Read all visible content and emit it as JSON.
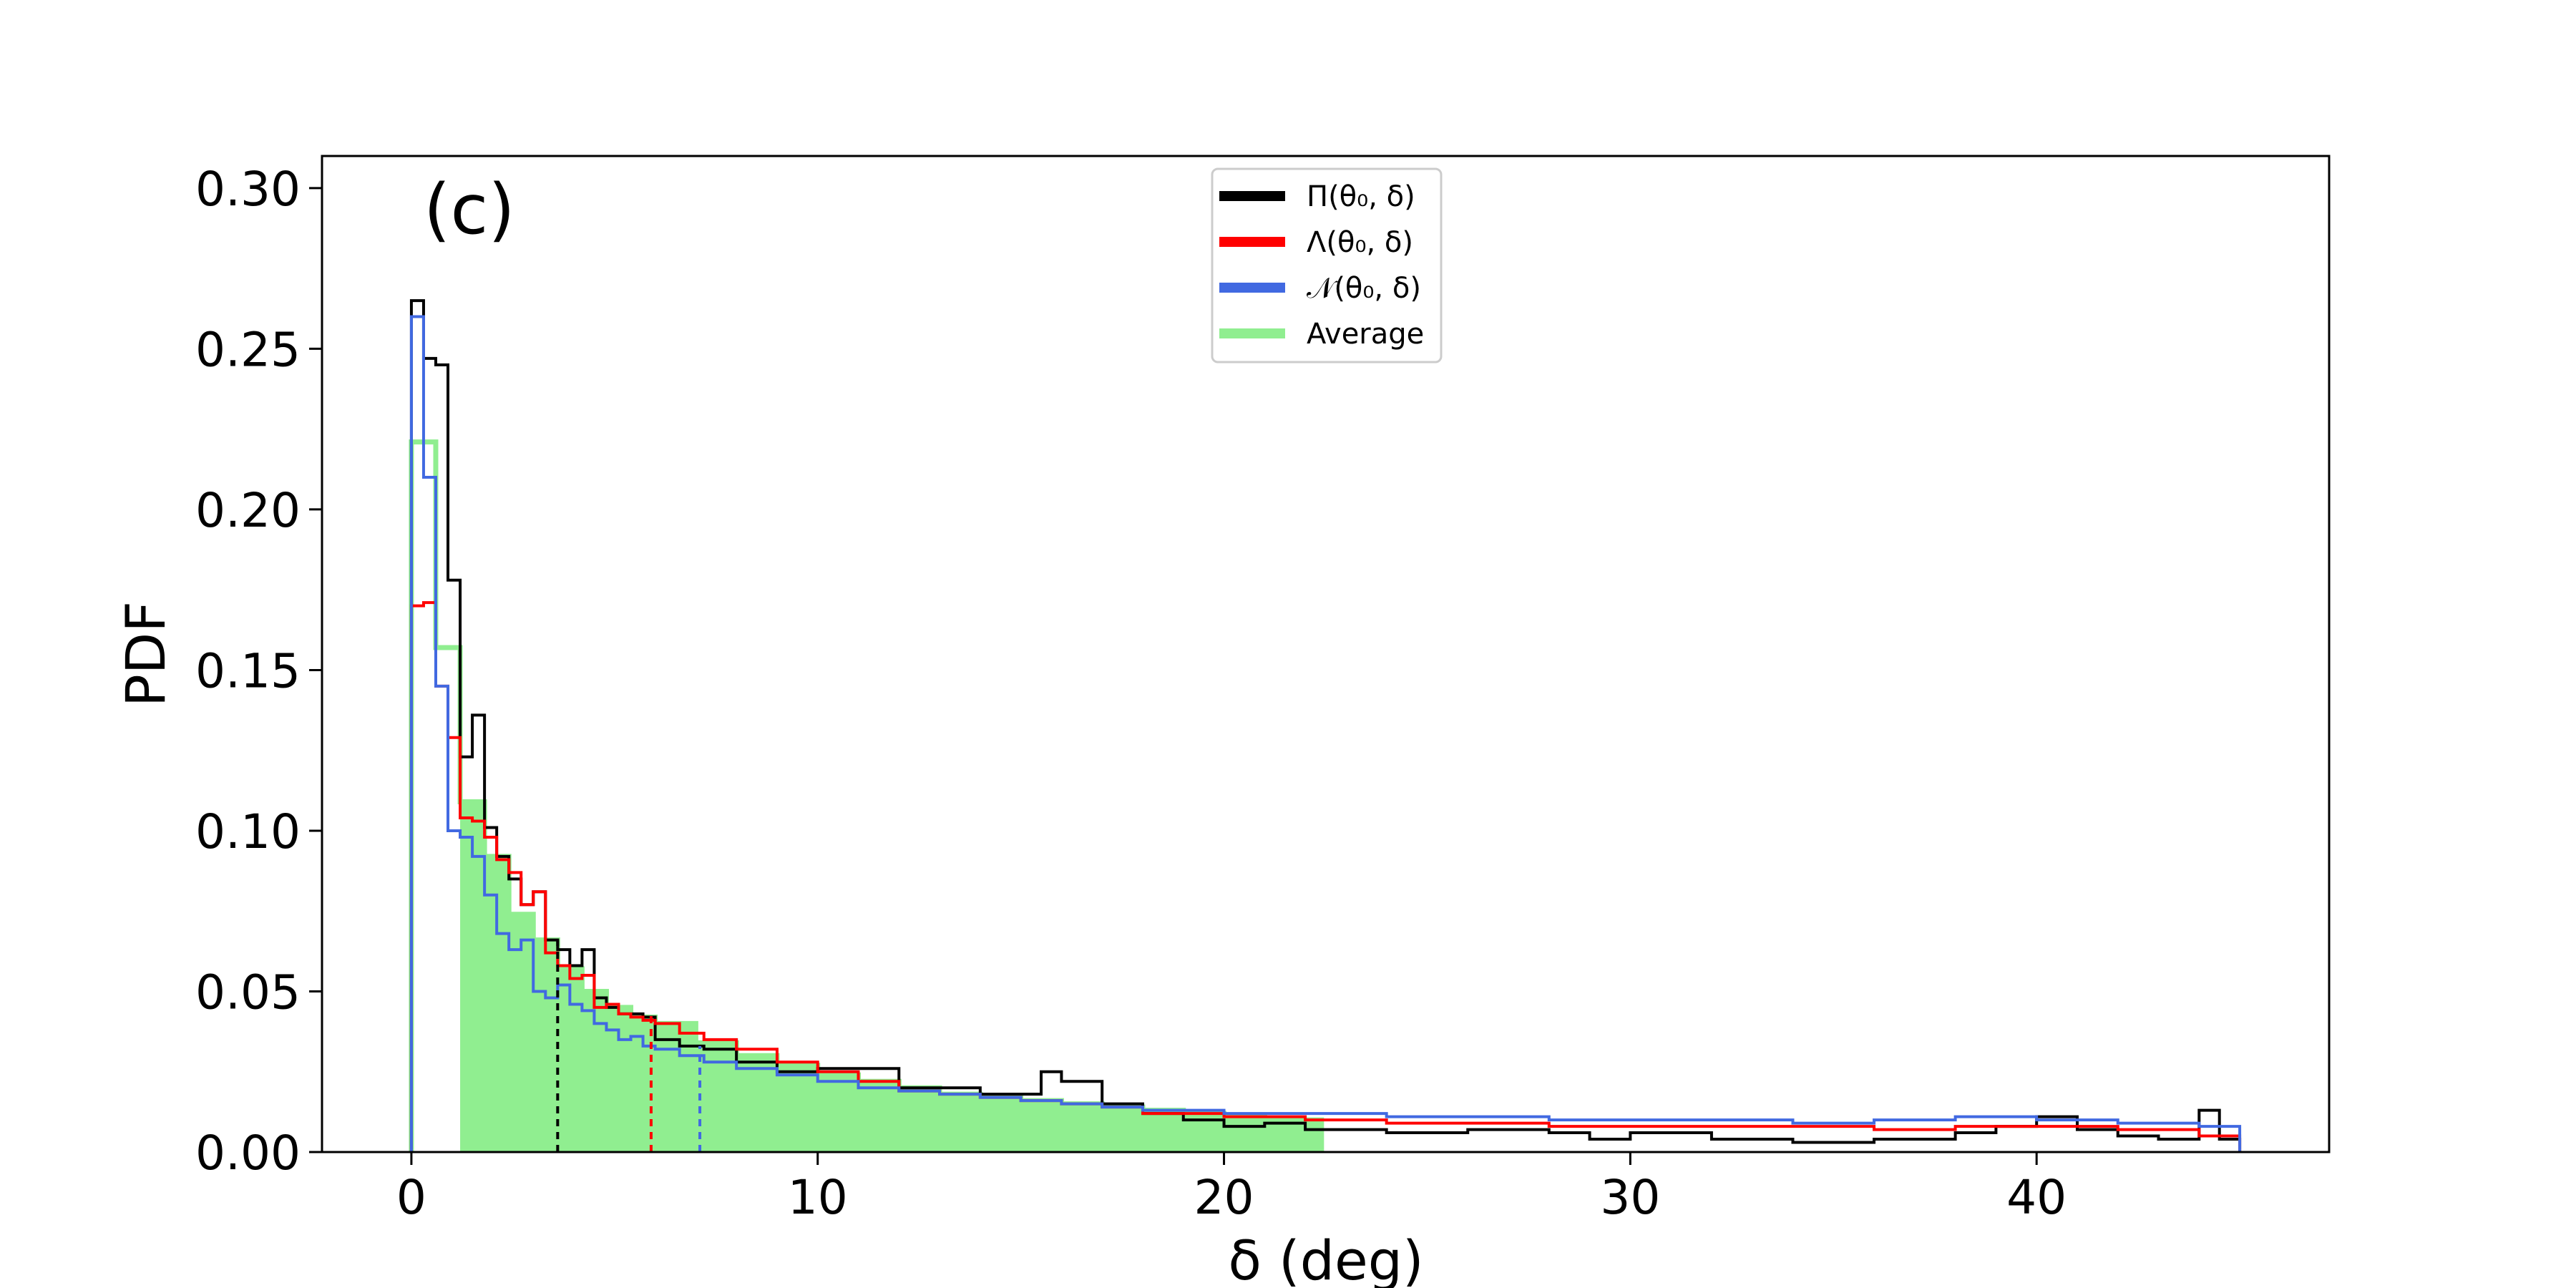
{
  "chart_data": {
    "type": "histogram",
    "panel_label": "(c)",
    "xlabel": "δ (deg)",
    "ylabel": "PDF",
    "xlim": [
      -2.2,
      47.2
    ],
    "ylim": [
      0.0,
      0.31
    ],
    "xticks": [
      0,
      10,
      20,
      30,
      40
    ],
    "yticks": [
      0.0,
      0.05,
      0.1,
      0.15,
      0.2,
      0.25,
      0.3
    ],
    "ytick_labels": [
      "0.00",
      "0.05",
      "0.10",
      "0.15",
      "0.20",
      "0.25",
      "0.30"
    ],
    "grid": false,
    "legend_position": "top-center",
    "legend": [
      {
        "label": "Π(θ₀, δ)",
        "color": "#000000"
      },
      {
        "label": "Λ(θ₀, δ)",
        "color": "#ff0000"
      },
      {
        "label": "𝒩(θ₀, δ)",
        "color": "#4169e1"
      },
      {
        "label": "Average",
        "color": "#90ee90"
      }
    ],
    "series": [
      {
        "name": "Π(θ₀, δ)",
        "style": "step",
        "color": "#000000",
        "x": [
          0.0,
          0.3,
          0.6,
          0.9,
          1.2,
          1.5,
          1.8,
          2.1,
          2.4,
          2.7,
          3.0,
          3.3,
          3.6,
          3.9,
          4.2,
          4.5,
          4.8,
          5.1,
          5.4,
          5.7,
          6.0,
          6.6,
          7.2,
          8.0,
          9.0,
          10.0,
          12.0,
          14.0,
          15.5,
          16.0,
          17.0,
          18.0,
          19.0,
          20.0,
          21.0,
          22.0,
          24.0,
          26.0,
          28.0,
          29.0,
          30.0,
          32.0,
          34.0,
          36.0,
          38.0,
          39.0,
          40.0,
          41.0,
          42.0,
          43.0,
          44.0,
          44.5,
          45.0
        ],
        "y": [
          0.265,
          0.247,
          0.245,
          0.178,
          0.123,
          0.136,
          0.101,
          0.092,
          0.085,
          0.077,
          0.081,
          0.066,
          0.063,
          0.058,
          0.063,
          0.048,
          0.045,
          0.043,
          0.043,
          0.042,
          0.035,
          0.033,
          0.032,
          0.028,
          0.025,
          0.026,
          0.02,
          0.018,
          0.025,
          0.022,
          0.015,
          0.012,
          0.01,
          0.008,
          0.009,
          0.007,
          0.006,
          0.007,
          0.006,
          0.004,
          0.006,
          0.004,
          0.003,
          0.004,
          0.006,
          0.008,
          0.011,
          0.007,
          0.005,
          0.004,
          0.013,
          0.004,
          0.004
        ]
      },
      {
        "name": "Λ(θ₀, δ)",
        "style": "step",
        "color": "#ff0000",
        "x": [
          0.0,
          0.3,
          0.6,
          0.9,
          1.2,
          1.5,
          1.8,
          2.1,
          2.4,
          2.7,
          3.0,
          3.3,
          3.6,
          3.9,
          4.2,
          4.5,
          4.8,
          5.1,
          5.4,
          5.7,
          6.0,
          6.6,
          7.2,
          8.0,
          9.0,
          10.0,
          11.0,
          12.0,
          13.0,
          14.0,
          15.0,
          16.0,
          17.0,
          18.0,
          19.0,
          20.0,
          22.0,
          24.0,
          26.0,
          28.0,
          30.0,
          32.0,
          34.0,
          36.0,
          38.0,
          40.0,
          42.0,
          44.0,
          45.0
        ],
        "y": [
          0.17,
          0.171,
          0.145,
          0.129,
          0.104,
          0.103,
          0.098,
          0.091,
          0.087,
          0.077,
          0.081,
          0.062,
          0.058,
          0.054,
          0.055,
          0.045,
          0.046,
          0.043,
          0.042,
          0.041,
          0.04,
          0.037,
          0.035,
          0.032,
          0.028,
          0.025,
          0.022,
          0.019,
          0.018,
          0.017,
          0.016,
          0.015,
          0.014,
          0.012,
          0.012,
          0.011,
          0.01,
          0.009,
          0.009,
          0.008,
          0.008,
          0.008,
          0.008,
          0.007,
          0.008,
          0.008,
          0.007,
          0.005,
          0.005
        ]
      },
      {
        "name": "𝒩(θ₀, δ)",
        "style": "step",
        "color": "#4169e1",
        "x": [
          0.0,
          0.3,
          0.6,
          0.9,
          1.2,
          1.5,
          1.8,
          2.1,
          2.4,
          2.7,
          3.0,
          3.3,
          3.6,
          3.9,
          4.2,
          4.5,
          4.8,
          5.1,
          5.4,
          5.7,
          6.0,
          6.6,
          7.2,
          8.0,
          9.0,
          10.0,
          11.0,
          12.0,
          13.0,
          14.0,
          15.0,
          16.0,
          17.0,
          18.0,
          19.0,
          20.0,
          22.0,
          24.0,
          26.0,
          28.0,
          30.0,
          32.0,
          34.0,
          36.0,
          38.0,
          40.0,
          42.0,
          44.0,
          45.0
        ],
        "y": [
          0.26,
          0.21,
          0.145,
          0.1,
          0.098,
          0.092,
          0.08,
          0.068,
          0.063,
          0.066,
          0.05,
          0.048,
          0.052,
          0.046,
          0.044,
          0.04,
          0.038,
          0.035,
          0.036,
          0.033,
          0.032,
          0.03,
          0.028,
          0.026,
          0.024,
          0.022,
          0.02,
          0.019,
          0.018,
          0.017,
          0.016,
          0.015,
          0.014,
          0.013,
          0.013,
          0.012,
          0.012,
          0.011,
          0.011,
          0.01,
          0.01,
          0.01,
          0.009,
          0.01,
          0.011,
          0.01,
          0.009,
          0.008,
          0.008
        ]
      },
      {
        "name": "Average",
        "style": "filled-step",
        "color": "#90ee90",
        "x": [
          0.0,
          0.6,
          1.2,
          1.8,
          2.4,
          3.0,
          3.6,
          4.2,
          4.8,
          5.4,
          6.0,
          7.0,
          8.0,
          9.0,
          10.0,
          11.0,
          12.0,
          13.0,
          14.0,
          15.0,
          16.0,
          17.0,
          18.0,
          19.0,
          20.0,
          21.0,
          22.0,
          22.4
        ],
        "y": [
          0.221,
          0.157,
          0.109,
          0.092,
          0.074,
          0.066,
          0.057,
          0.05,
          0.045,
          0.042,
          0.04,
          0.034,
          0.03,
          0.027,
          0.024,
          0.022,
          0.02,
          0.018,
          0.017,
          0.016,
          0.015,
          0.014,
          0.013,
          0.012,
          0.011,
          0.01,
          0.01,
          0.01
        ],
        "fill_start": 1.2
      }
    ],
    "vertical_markers": [
      {
        "x": 3.6,
        "y": 0.066,
        "color": "#000000"
      },
      {
        "x": 5.9,
        "y": 0.043,
        "color": "#ff0000"
      },
      {
        "x": 7.1,
        "y": 0.033,
        "color": "#4169e1"
      }
    ]
  }
}
